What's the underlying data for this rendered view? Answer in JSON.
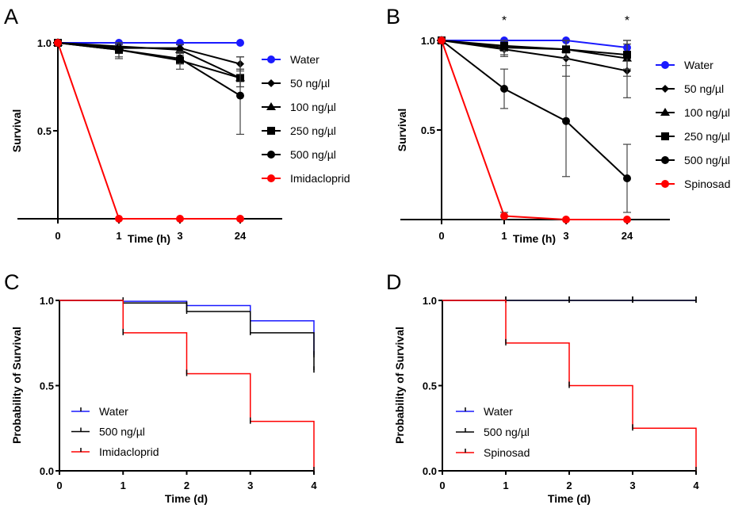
{
  "colors": {
    "water": "#1a1aff",
    "treatment": "#000000",
    "insecticide": "#ff0000"
  },
  "chart_data": [
    {
      "panel": "A",
      "type": "line",
      "xlabel": "Time (h)",
      "ylabel": "Survival",
      "categories": [
        "0",
        "1",
        "3",
        "24"
      ],
      "yticks": [
        "1.0",
        "0.5"
      ],
      "ylim": [
        0,
        1
      ],
      "legend": "right",
      "series": [
        {
          "name": "Water",
          "marker": "circle",
          "color": "#1a1aff",
          "values": [
            1,
            1,
            1,
            1
          ],
          "errors": [
            0,
            0,
            0,
            0
          ]
        },
        {
          "name": "50 ng/µl",
          "marker": "diamond",
          "color": "#000000",
          "values": [
            1,
            0.97,
            0.97,
            0.88
          ],
          "errors": [
            0,
            0.02,
            0.02,
            0.04
          ]
        },
        {
          "name": "100 ng/µl",
          "marker": "triangle",
          "color": "#000000",
          "values": [
            1,
            0.98,
            0.96,
            0.8
          ],
          "errors": [
            0,
            0.02,
            0.03,
            0.05
          ]
        },
        {
          "name": "250 ng/µl",
          "marker": "square",
          "color": "#000000",
          "values": [
            1,
            0.96,
            0.9,
            0.8
          ],
          "errors": [
            0,
            0.05,
            0.05,
            0.05
          ]
        },
        {
          "name": "500 ng/µl",
          "marker": "circle",
          "color": "#000000",
          "values": [
            1,
            0.96,
            0.91,
            0.7
          ],
          "errors": [
            0,
            0.04,
            0.03,
            0.22
          ]
        },
        {
          "name": "Imidacloprid",
          "marker": "circle",
          "color": "#ff0000",
          "values": [
            1,
            0,
            0,
            0
          ],
          "errors": [
            0,
            0,
            0,
            0
          ]
        }
      ],
      "annotations": []
    },
    {
      "panel": "B",
      "type": "line",
      "xlabel": "Time (h)",
      "ylabel": "Survival",
      "categories": [
        "0",
        "1",
        "3",
        "24"
      ],
      "yticks": [
        "1.0",
        "0.5"
      ],
      "ylim": [
        0,
        1
      ],
      "legend": "right",
      "series": [
        {
          "name": "Water",
          "marker": "circle",
          "color": "#1a1aff",
          "values": [
            1,
            1,
            1,
            0.96
          ],
          "errors": [
            0,
            0,
            0,
            0.04
          ]
        },
        {
          "name": "50 ng/µl",
          "marker": "diamond",
          "color": "#000000",
          "values": [
            1,
            0.95,
            0.9,
            0.83
          ],
          "errors": [
            0,
            0.04,
            0.1,
            0.15
          ]
        },
        {
          "name": "100 ng/µl",
          "marker": "triangle",
          "color": "#000000",
          "values": [
            1,
            0.96,
            0.95,
            0.9
          ],
          "errors": [
            0,
            0.04,
            0.05,
            0.1
          ]
        },
        {
          "name": "250 ng/µl",
          "marker": "square",
          "color": "#000000",
          "values": [
            1,
            0.97,
            0.95,
            0.92
          ],
          "errors": [
            0,
            0.03,
            0.05,
            0.08
          ]
        },
        {
          "name": "500 ng/µl",
          "marker": "circle",
          "color": "#000000",
          "values": [
            1,
            0.73,
            0.55,
            0.23
          ],
          "errors": [
            0,
            0.11,
            0.31,
            0.19
          ]
        },
        {
          "name": "Spinosad",
          "marker": "circle",
          "color": "#ff0000",
          "values": [
            1,
            0.02,
            0,
            0
          ],
          "errors": [
            0,
            0.02,
            0,
            0
          ]
        }
      ],
      "annotations": [
        {
          "text": "*",
          "category": "1"
        },
        {
          "text": "*",
          "category": "24"
        }
      ]
    },
    {
      "panel": "C",
      "type": "line",
      "subtype": "kaplan-meier",
      "xlabel": "Time (d)",
      "ylabel": "Probability of Survival",
      "xticks": [
        "0",
        "1",
        "2",
        "3",
        "4"
      ],
      "yticks": [
        "1.0",
        "0.5",
        "0.0"
      ],
      "xlim": [
        0,
        4
      ],
      "ylim": [
        0,
        1
      ],
      "legend": "bottom-left",
      "series": [
        {
          "name": "Water",
          "color": "#1a1aff",
          "steps": [
            [
              0,
              1
            ],
            [
              1,
              0.995
            ],
            [
              2,
              0.97
            ],
            [
              3,
              0.88
            ],
            [
              4,
              0.68
            ]
          ]
        },
        {
          "name": "500 ng/µl",
          "color": "#000000",
          "steps": [
            [
              0,
              1
            ],
            [
              1,
              0.985
            ],
            [
              2,
              0.935
            ],
            [
              3,
              0.81
            ],
            [
              4,
              0.59
            ]
          ]
        },
        {
          "name": "Imidacloprid",
          "color": "#ff0000",
          "steps": [
            [
              0,
              1
            ],
            [
              1,
              0.81
            ],
            [
              2,
              0.57
            ],
            [
              3,
              0.29
            ],
            [
              4,
              0
            ]
          ]
        }
      ]
    },
    {
      "panel": "D",
      "type": "line",
      "subtype": "kaplan-meier",
      "xlabel": "Time (d)",
      "ylabel": "Probability of Survival",
      "xticks": [
        "0",
        "1",
        "2",
        "3",
        "4"
      ],
      "yticks": [
        "1.0",
        "0.5",
        "0.0"
      ],
      "xlim": [
        0,
        4
      ],
      "ylim": [
        0,
        1
      ],
      "legend": "bottom-left",
      "series": [
        {
          "name": "Water",
          "color": "#1a1aff",
          "steps": [
            [
              0,
              1
            ],
            [
              1,
              1
            ],
            [
              2,
              1
            ],
            [
              3,
              1
            ],
            [
              4,
              1
            ]
          ]
        },
        {
          "name": "500 ng/µl",
          "color": "#000000",
          "steps": [
            [
              0,
              1
            ],
            [
              1,
              1
            ],
            [
              2,
              1
            ],
            [
              3,
              1
            ],
            [
              4,
              1
            ]
          ]
        },
        {
          "name": "Spinosad",
          "color": "#ff0000",
          "steps": [
            [
              0,
              1
            ],
            [
              1,
              0.75
            ],
            [
              2,
              0.5
            ],
            [
              3,
              0.25
            ],
            [
              4,
              0
            ]
          ]
        }
      ]
    }
  ]
}
